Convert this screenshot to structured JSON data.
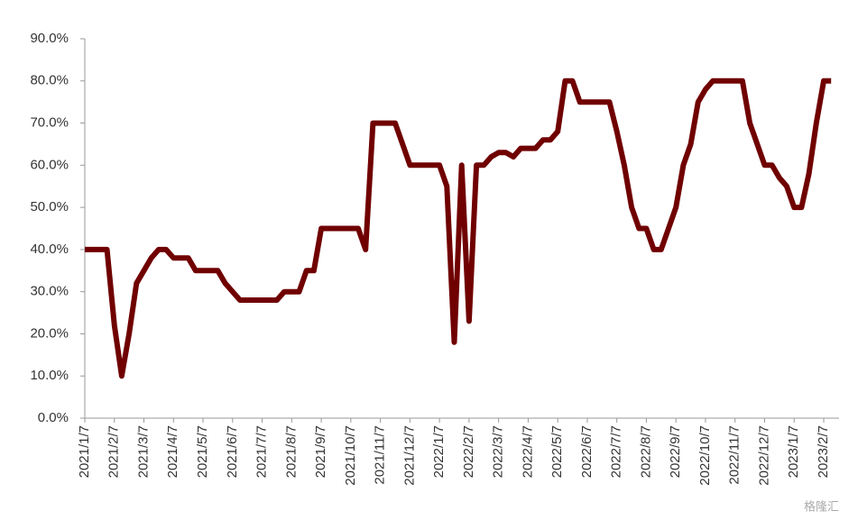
{
  "chart_data": {
    "type": "line",
    "categories": [
      "2021/1/7",
      null,
      null,
      null,
      "2021/2/7",
      null,
      null,
      null,
      "2021/3/7",
      null,
      null,
      null,
      "2021/4/7",
      null,
      null,
      null,
      "2021/5/7",
      null,
      null,
      null,
      "2021/6/7",
      null,
      null,
      null,
      "2021/7/7",
      null,
      null,
      null,
      "2021/8/7",
      null,
      null,
      null,
      "2021/9/7",
      null,
      null,
      null,
      "2021/10/7",
      null,
      null,
      null,
      "2021/11/7",
      null,
      null,
      null,
      "2021/12/7",
      null,
      null,
      null,
      "2022/1/7",
      null,
      null,
      null,
      "2022/2/7",
      null,
      null,
      null,
      "2022/3/7",
      null,
      null,
      null,
      "2022/4/7",
      null,
      null,
      null,
      "2022/5/7",
      null,
      null,
      null,
      "2022/6/7",
      null,
      null,
      null,
      "2022/7/7",
      null,
      null,
      null,
      "2022/8/7",
      null,
      null,
      null,
      "2022/9/7",
      null,
      null,
      null,
      "2022/10/7",
      null,
      null,
      null,
      "2022/11/7",
      null,
      null,
      null,
      "2022/12/7",
      null,
      null,
      null,
      "2023/1/7",
      null,
      null,
      null,
      "2023/2/7",
      null
    ],
    "values": [
      40,
      40,
      40,
      40,
      22,
      10,
      20,
      32,
      35,
      38,
      40,
      40,
      38,
      38,
      38,
      35,
      35,
      35,
      35,
      32,
      30,
      28,
      28,
      28,
      28,
      28,
      28,
      30,
      30,
      30,
      35,
      35,
      45,
      45,
      45,
      45,
      45,
      45,
      40,
      70,
      70,
      70,
      70,
      65,
      60,
      60,
      60,
      60,
      60,
      55,
      18,
      60,
      23,
      60,
      60,
      62,
      63,
      63,
      62,
      64,
      64,
      64,
      66,
      66,
      68,
      80,
      80,
      75,
      75,
      75,
      75,
      75,
      68,
      60,
      50,
      45,
      45,
      40,
      40,
      45,
      50,
      60,
      65,
      75,
      78,
      80,
      80,
      80,
      80,
      80,
      70,
      65,
      60,
      60,
      57,
      55,
      50,
      50,
      58,
      70,
      80,
      80
    ],
    "color": "#700000",
    "ylim": [
      0,
      90
    ],
    "yticks": [
      {
        "value": 0,
        "label": "0.0%"
      },
      {
        "value": 10,
        "label": "10.0%"
      },
      {
        "value": 20,
        "label": "20.0%"
      },
      {
        "value": 30,
        "label": "30.0%"
      },
      {
        "value": 40,
        "label": "40.0%"
      },
      {
        "value": 50,
        "label": "50.0%"
      },
      {
        "value": 60,
        "label": "60.0%"
      },
      {
        "value": 70,
        "label": "70.0%"
      },
      {
        "value": 80,
        "label": "80.0%"
      },
      {
        "value": 90,
        "label": "90.0%"
      }
    ],
    "grid": false,
    "watermark": "格隆汇"
  }
}
